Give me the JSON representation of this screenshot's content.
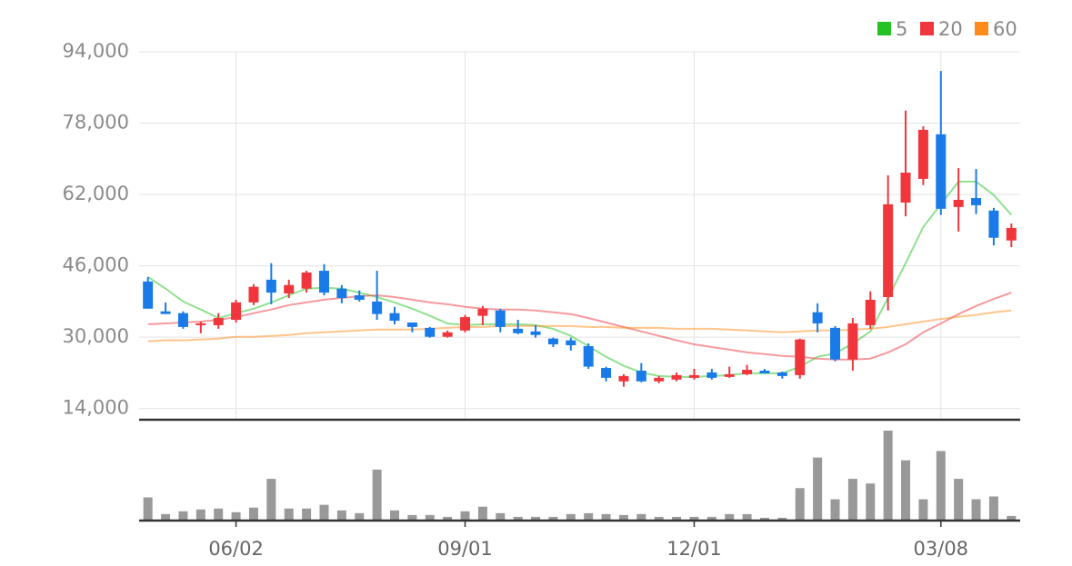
{
  "chart_data": {
    "type": "candlestick",
    "categories": [
      null,
      null,
      null,
      null,
      null,
      "06/02",
      null,
      null,
      null,
      null,
      null,
      null,
      null,
      null,
      null,
      null,
      null,
      null,
      "09/01",
      null,
      null,
      null,
      null,
      null,
      null,
      null,
      null,
      null,
      null,
      null,
      null,
      "12/01",
      null,
      null,
      null,
      null,
      null,
      null,
      null,
      null,
      null,
      null,
      null,
      null,
      null,
      "03/08",
      null,
      null,
      null,
      null
    ],
    "open": [
      42500,
      35800,
      35400,
      32700,
      32700,
      33900,
      37800,
      42900,
      39800,
      40900,
      44900,
      40900,
      39400,
      38000,
      35400,
      33300,
      32100,
      30100,
      31500,
      34800,
      36000,
      31900,
      31300,
      29700,
      29300,
      28000,
      23100,
      20100,
      22500,
      20100,
      20500,
      20900,
      22100,
      21100,
      21700,
      22500,
      22100,
      21500,
      35600,
      32100,
      25000,
      32700,
      39000,
      60200,
      65500,
      75500,
      59200,
      61200,
      58400,
      51700
    ],
    "high": [
      43500,
      37800,
      35800,
      33500,
      35400,
      38400,
      41900,
      46600,
      42900,
      44900,
      46400,
      41700,
      40500,
      44900,
      36800,
      33300,
      32300,
      31500,
      35000,
      37000,
      36400,
      33900,
      32700,
      29900,
      29900,
      28600,
      23400,
      21700,
      24200,
      21300,
      22100,
      22900,
      22900,
      23400,
      23800,
      22900,
      22300,
      29700,
      37600,
      32500,
      34300,
      40300,
      66300,
      80800,
      77300,
      89700,
      67900,
      67700,
      59000,
      55500
    ],
    "low": [
      36400,
      35200,
      31900,
      30900,
      31900,
      33300,
      37200,
      37400,
      38800,
      40000,
      39400,
      37600,
      38000,
      33900,
      32900,
      31100,
      29900,
      29900,
      31100,
      32700,
      31100,
      30700,
      29900,
      27800,
      27000,
      22900,
      20100,
      18900,
      19900,
      19700,
      20100,
      20500,
      20500,
      20900,
      21500,
      21900,
      20700,
      20700,
      31100,
      24600,
      22500,
      31900,
      36000,
      57100,
      64100,
      57400,
      53700,
      57600,
      50600,
      50200
    ],
    "close": [
      36400,
      35200,
      32300,
      33100,
      34300,
      37800,
      41300,
      40000,
      41700,
      44500,
      40000,
      38800,
      38400,
      35200,
      33700,
      32300,
      30100,
      31100,
      34500,
      36400,
      32300,
      30900,
      30500,
      28400,
      28200,
      23400,
      20900,
      21300,
      20100,
      20900,
      21500,
      21500,
      20900,
      21700,
      22700,
      21900,
      21300,
      29500,
      33100,
      25000,
      33100,
      38400,
      59800,
      66900,
      76500,
      58800,
      60800,
      59600,
      52300,
      54500
    ],
    "volume": [
      25,
      7,
      10,
      12,
      13,
      9,
      14,
      45,
      13,
      13,
      17,
      11,
      8,
      55,
      11,
      6,
      6,
      4,
      10,
      15,
      8,
      4,
      4,
      4,
      7,
      8,
      7,
      6,
      7,
      4,
      4,
      4,
      4,
      7,
      7,
      3,
      3,
      35,
      68,
      23,
      45,
      40,
      97,
      65,
      23,
      75,
      45,
      23,
      26,
      5
    ],
    "up_color": "#f0363c",
    "down_color": "#1a7be8",
    "volume_color": "#999999",
    "series": [
      {
        "name": "5",
        "color": "#22c322",
        "values": [
          43500,
          40900,
          38000,
          36200,
          34300,
          35400,
          36400,
          37800,
          39400,
          40900,
          41100,
          40900,
          40000,
          39000,
          37800,
          36400,
          34800,
          33100,
          32700,
          32900,
          32900,
          32900,
          32700,
          31900,
          30300,
          28000,
          25600,
          23600,
          22100,
          21300,
          21100,
          21100,
          21300,
          21500,
          21900,
          21900,
          21900,
          23400,
          25600,
          26400,
          28600,
          31300,
          38800,
          46600,
          54700,
          59800,
          64900,
          64900,
          61900,
          57400
        ]
      },
      {
        "name": "20",
        "color": "#f0363c",
        "values": [
          32900,
          33100,
          33300,
          33500,
          33900,
          34500,
          35400,
          36200,
          37200,
          37800,
          38400,
          38800,
          39200,
          39400,
          39000,
          38400,
          37800,
          37400,
          36800,
          36400,
          36200,
          36200,
          36000,
          35600,
          35200,
          34300,
          33300,
          32300,
          31300,
          30300,
          29300,
          28400,
          27800,
          27200,
          26600,
          26200,
          25800,
          25600,
          25200,
          25000,
          25000,
          25200,
          26600,
          28400,
          31100,
          33100,
          35200,
          37000,
          38600,
          40000
        ]
      },
      {
        "name": "60",
        "color": "#ff8c1a",
        "values": [
          29100,
          29300,
          29300,
          29500,
          29700,
          30100,
          30100,
          30300,
          30500,
          30900,
          31100,
          31300,
          31500,
          31700,
          31700,
          31700,
          31900,
          32100,
          32300,
          32300,
          32500,
          32500,
          32500,
          32500,
          32500,
          32300,
          32300,
          32100,
          32100,
          32100,
          31900,
          31900,
          31900,
          31700,
          31500,
          31300,
          31100,
          31300,
          31500,
          31500,
          31700,
          31900,
          32300,
          32900,
          33500,
          34100,
          34600,
          35000,
          35600,
          36000
        ]
      }
    ],
    "ylim": [
      11500,
      94000
    ],
    "yticks": [
      {
        "value": 14000,
        "label": "14,000"
      },
      {
        "value": 30000,
        "label": "30,000"
      },
      {
        "value": 46000,
        "label": "46,000"
      },
      {
        "value": 62000,
        "label": "62,000"
      },
      {
        "value": 78000,
        "label": "78,000"
      },
      {
        "value": 94000,
        "label": "94,000"
      }
    ],
    "grid": true,
    "legend": "top-right"
  }
}
